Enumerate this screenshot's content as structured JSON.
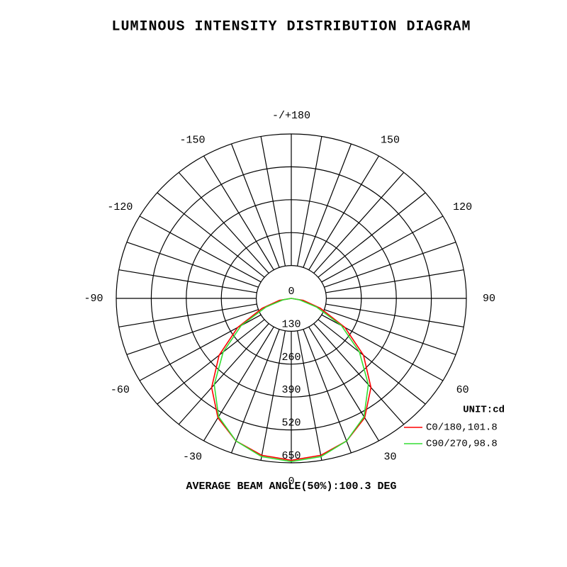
{
  "chart_data": {
    "type": "polar",
    "title": "LUMINOUS INTENSITY DISTRIBUTION DIAGRAM",
    "annotation": "AVERAGE BEAM ANGLE(50%):100.3 DEG",
    "legend_title": "UNIT:cd",
    "legend": "lower right",
    "x": [
      -90,
      -80,
      -70,
      -60,
      -50,
      -40,
      -30,
      -20,
      -10,
      0,
      10,
      20,
      30,
      40,
      50,
      60,
      70,
      80,
      90
    ],
    "series": [
      {
        "name": "C0/180,101.8",
        "color": "#ff0000",
        "values": [
          0,
          45,
          115,
          230,
          350,
          460,
          545,
          600,
          630,
          640,
          630,
          600,
          545,
          460,
          350,
          230,
          115,
          45,
          0
        ]
      },
      {
        "name": "C90/270,98.8",
        "color": "#33dd33",
        "values": [
          0,
          30,
          100,
          215,
          330,
          445,
          540,
          600,
          635,
          645,
          635,
          600,
          540,
          445,
          330,
          215,
          100,
          30,
          0
        ]
      }
    ],
    "rlim": [
      0,
      650
    ],
    "rticks": [
      0,
      130,
      260,
      390,
      520,
      650
    ],
    "angle_ticks": [
      {
        "value": 180,
        "label": "-/+180"
      },
      150,
      120,
      90,
      60,
      30,
      0,
      -30,
      -60,
      -90,
      -120,
      -150
    ],
    "grid": true
  }
}
